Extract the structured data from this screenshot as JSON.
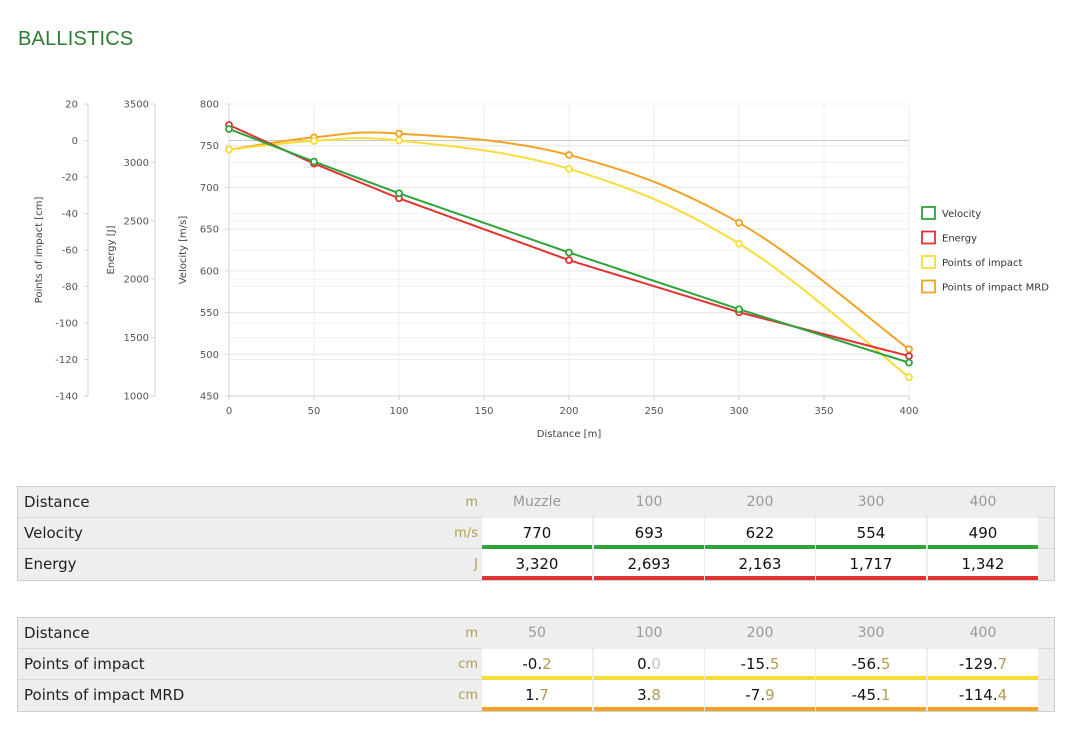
{
  "page": {
    "title": "BALLISTICS"
  },
  "colors": {
    "velocity": "#2ea43a",
    "energy": "#e33232",
    "poi": "#f7dd38",
    "poi_mrd": "#f2a325",
    "title": "#2e7d32"
  },
  "chart_data": {
    "type": "line",
    "xlabel": "Distance [m]",
    "x_ticks": [
      0,
      50,
      100,
      150,
      200,
      250,
      300,
      350,
      400
    ],
    "xlim": [
      0,
      400
    ],
    "axes": [
      {
        "id": "poi",
        "label": "Points of impact [cm]",
        "ylim": [
          -140,
          20
        ],
        "ticks": [
          20,
          0,
          -20,
          -40,
          -60,
          -80,
          -100,
          -120,
          -140
        ]
      },
      {
        "id": "energy",
        "label": "Energy [J]",
        "ylim": [
          1000,
          3500
        ],
        "ticks": [
          3500,
          3000,
          2500,
          2000,
          1500,
          1000
        ]
      },
      {
        "id": "velocity",
        "label": "Velocity [m/s]",
        "ylim": [
          450,
          800
        ],
        "ticks": [
          800,
          750,
          700,
          650,
          600,
          550,
          500,
          450
        ]
      }
    ],
    "series": [
      {
        "name": "Velocity",
        "axis": "velocity",
        "color": "#2ea43a",
        "smooth": false,
        "x": [
          0,
          50,
          100,
          200,
          300,
          400
        ],
        "y": [
          770,
          731,
          693,
          622,
          554,
          490
        ]
      },
      {
        "name": "Energy",
        "axis": "energy",
        "color": "#e33232",
        "smooth": false,
        "x": [
          0,
          50,
          100,
          200,
          300,
          400
        ],
        "y": [
          3320,
          2990,
          2693,
          2163,
          1717,
          1342
        ]
      },
      {
        "name": "Points of impact",
        "axis": "poi",
        "color": "#f7dd38",
        "smooth": true,
        "x": [
          0,
          50,
          100,
          200,
          300,
          400
        ],
        "y": [
          -5,
          -0.2,
          0.0,
          -15.5,
          -56.5,
          -129.7
        ]
      },
      {
        "name": "Points of impact MRD",
        "axis": "poi",
        "color": "#f2a325",
        "smooth": true,
        "x": [
          0,
          50,
          100,
          200,
          300,
          400
        ],
        "y": [
          -5,
          1.7,
          3.8,
          -7.9,
          -45.1,
          -114.4
        ]
      }
    ],
    "legend_position": "right",
    "grid": true
  },
  "table1": {
    "header": {
      "label": "Distance",
      "unit": "m",
      "values": [
        "Muzzle",
        "100",
        "200",
        "300",
        "400"
      ]
    },
    "rows": [
      {
        "label": "Velocity",
        "unit": "m/s",
        "values": [
          "770",
          "693",
          "622",
          "554",
          "490"
        ],
        "color": "#2ea43a"
      },
      {
        "label": "Energy",
        "unit": "J",
        "values": [
          "3,320",
          "2,693",
          "2,163",
          "1,717",
          "1,342"
        ],
        "color": "#e33232"
      }
    ]
  },
  "table2": {
    "header": {
      "label": "Distance",
      "unit": "m",
      "values": [
        "50",
        "100",
        "200",
        "300",
        "400"
      ]
    },
    "rows": [
      {
        "label": "Points of impact",
        "unit": "cm",
        "color": "#f7dd38",
        "values": [
          {
            "int": "-0.",
            "dec": "2"
          },
          {
            "int": "0.",
            "dec": "0",
            "muted": true
          },
          {
            "int": "-15.",
            "dec": "5"
          },
          {
            "int": "-56.",
            "dec": "5"
          },
          {
            "int": "-129.",
            "dec": "7"
          }
        ]
      },
      {
        "label": "Points of impact MRD",
        "unit": "cm",
        "color": "#f2a325",
        "values": [
          {
            "int": "1.",
            "dec": "7"
          },
          {
            "int": "3.",
            "dec": "8"
          },
          {
            "int": "-7.",
            "dec": "9"
          },
          {
            "int": "-45.",
            "dec": "1"
          },
          {
            "int": "-114.",
            "dec": "4"
          }
        ]
      }
    ]
  }
}
